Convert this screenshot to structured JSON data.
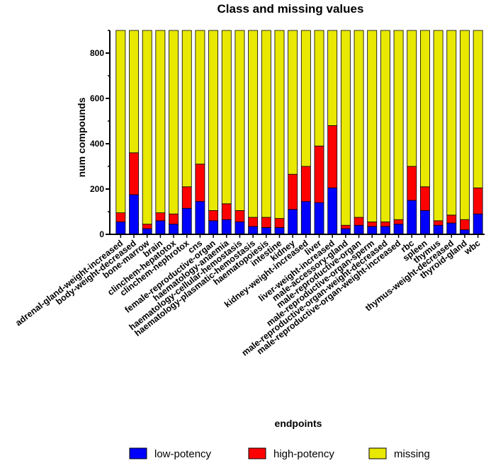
{
  "chart_data": {
    "type": "bar",
    "stacked": true,
    "title": "Class and missing values",
    "xlabel": "endpoints",
    "ylabel": "num compounds",
    "ylim": [
      0,
      900
    ],
    "yticks": [
      0,
      200,
      400,
      600,
      800
    ],
    "categories": [
      "adrenal-gland-weight-increased",
      "body-weight-decreased",
      "bone-marrow",
      "brain",
      "clinchem-hepatotox",
      "clinchem-nephrotox",
      "cns",
      "female-reproductive-organ",
      "haematology-anaemia",
      "haematology-cellular-hemostasis",
      "haematology-plasmatic-hemostasis",
      "haematopoiesis",
      "intestine",
      "kidney",
      "kidney-weight-increased",
      "liver",
      "liver-weight-increased",
      "male-accessory-gland",
      "male-reproductive-organ",
      "male-reproductive-organ-sperm",
      "male-reproductive-organ-weight-decreased",
      "male-reproductive-organ-weight-increased",
      "rbc",
      "spleen",
      "thymus",
      "thymus-weight-decreased",
      "thyroid-gland",
      "wbc"
    ],
    "series": [
      {
        "name": "low-potency",
        "color": "#0000ff",
        "values": [
          55,
          175,
          25,
          60,
          45,
          115,
          145,
          60,
          65,
          55,
          35,
          30,
          30,
          110,
          145,
          140,
          205,
          25,
          40,
          35,
          35,
          45,
          150,
          105,
          40,
          50,
          20,
          90
        ]
      },
      {
        "name": "high-potency",
        "color": "#ff0000",
        "values": [
          40,
          185,
          20,
          35,
          45,
          95,
          165,
          45,
          70,
          50,
          40,
          45,
          40,
          155,
          155,
          250,
          275,
          15,
          35,
          20,
          20,
          20,
          150,
          105,
          20,
          35,
          45,
          115
        ]
      },
      {
        "name": "missing",
        "color": "#e8e800",
        "values": [
          805,
          540,
          855,
          805,
          810,
          690,
          590,
          795,
          765,
          795,
          825,
          825,
          830,
          635,
          600,
          510,
          420,
          860,
          825,
          845,
          845,
          835,
          600,
          690,
          840,
          815,
          835,
          695
        ]
      }
    ],
    "legend_position": "bottom",
    "grid": false
  }
}
